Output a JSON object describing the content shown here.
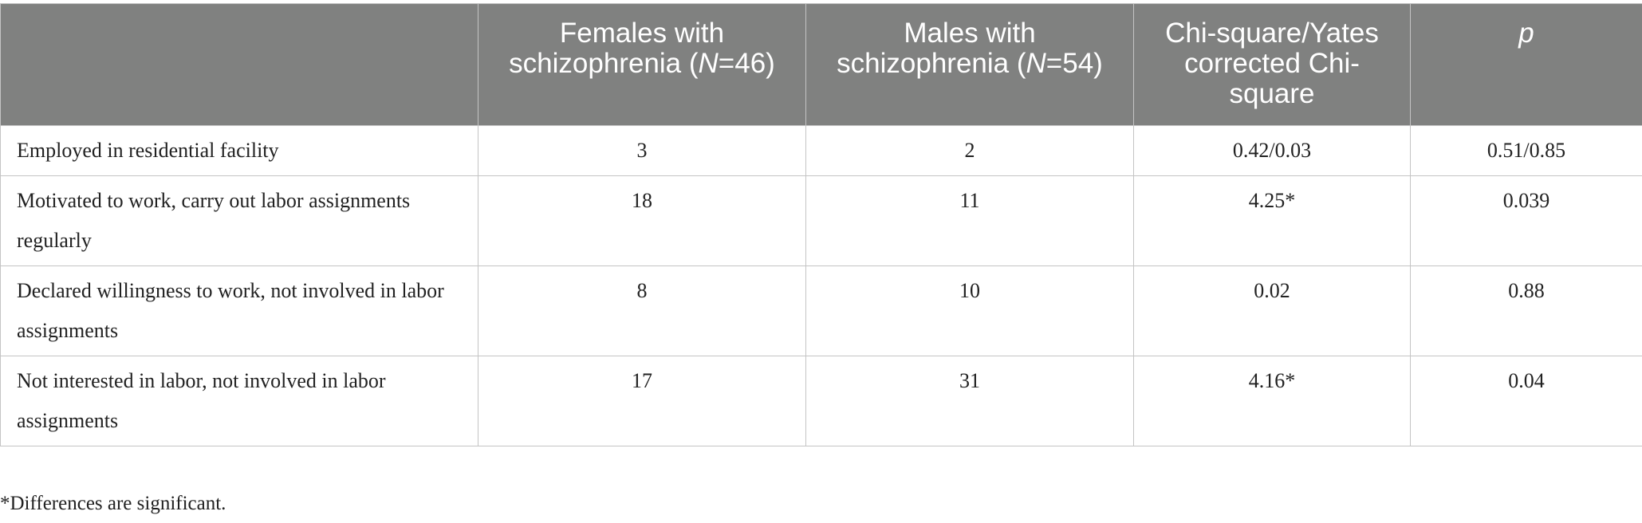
{
  "table": {
    "headers": [
      {
        "pre": "",
        "italic": "",
        "post": ""
      },
      {
        "pre": "Females with schizophrenia (",
        "italic": "N",
        "post": "=46)"
      },
      {
        "pre": "Males with schizophrenia (",
        "italic": "N",
        "post": "=54)"
      },
      {
        "pre": "Chi-square/Yates corrected Chi-square",
        "italic": "",
        "post": ""
      },
      {
        "pre": "",
        "italic": "p",
        "post": ""
      }
    ],
    "rows": [
      {
        "label": "Employed in residential facility",
        "females": "3",
        "males": "2",
        "chi": "0.42/0.03",
        "p": "0.51/0.85"
      },
      {
        "label": "Motivated to work, carry out labor assignments regularly",
        "females": "18",
        "males": "11",
        "chi": "4.25*",
        "p": "0.039"
      },
      {
        "label": "Declared willingness to work, not involved in labor assignments",
        "females": "8",
        "males": "10",
        "chi": "0.02",
        "p": "0.88"
      },
      {
        "label": "Not interested in labor, not involved in labor assignments",
        "females": "17",
        "males": "31",
        "chi": "4.16*",
        "p": "0.04"
      }
    ]
  },
  "footnote": "*Differences are significant."
}
